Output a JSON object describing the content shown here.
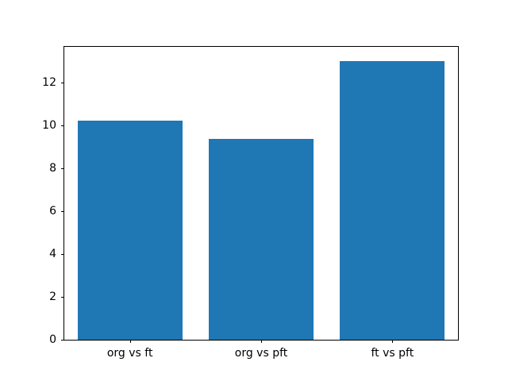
{
  "chart_data": {
    "type": "bar",
    "title": "",
    "xlabel": "",
    "ylabel": "",
    "categories": [
      "org vs ft",
      "org vs pft",
      "ft vs pft"
    ],
    "values": [
      10.2,
      9.35,
      13.0
    ],
    "yticks": [
      0,
      2,
      4,
      6,
      8,
      10,
      12
    ],
    "ylim": [
      0,
      13.65
    ],
    "bar_width_fraction": 0.8,
    "bar_color": "#1f77b4",
    "grid": "off",
    "legend": "none",
    "background_color": "#ffffff",
    "spine_color": "#000000"
  }
}
